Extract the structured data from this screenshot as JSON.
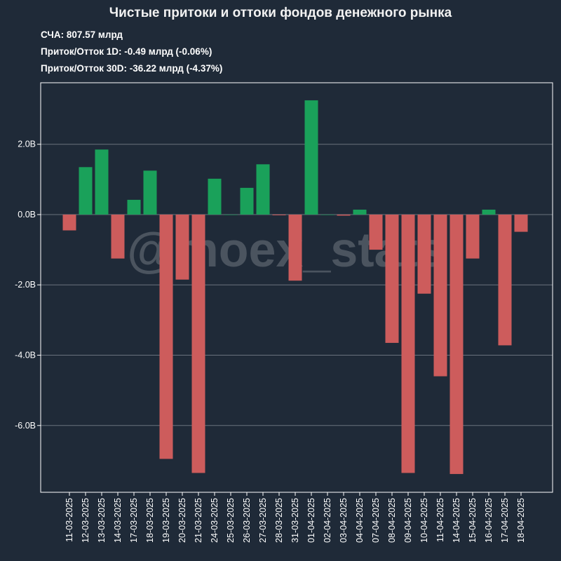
{
  "chart_data": {
    "type": "bar",
    "title": "Чистые притоки и оттоки фондов денежного рынка",
    "subtitle_lines": [
      "СЧА: 807.57 млрд",
      "Приток/Отток 1D: -0.49 млрд (-0.06%)",
      "Приток/Отток 30D: -36.22 млрд (-4.37%)"
    ],
    "watermark": "@moex_stats",
    "categories": [
      "11-03-2025",
      "12-03-2025",
      "13-03-2025",
      "14-03-2025",
      "17-03-2025",
      "18-03-2025",
      "19-03-2025",
      "20-03-2025",
      "21-03-2025",
      "24-03-2025",
      "25-03-2025",
      "26-03-2025",
      "27-03-2025",
      "28-03-2025",
      "31-03-2025",
      "01-04-2025",
      "02-04-2025",
      "03-04-2025",
      "04-04-2025",
      "07-04-2025",
      "08-04-2025",
      "09-04-2025",
      "10-04-2025",
      "11-04-2025",
      "14-04-2025",
      "15-04-2025",
      "16-04-2025",
      "17-04-2025",
      "18-04-2025"
    ],
    "values": [
      -0.45,
      1.35,
      1.85,
      -1.25,
      0.42,
      1.25,
      -6.95,
      -1.85,
      -7.35,
      1.02,
      0.0,
      0.76,
      1.43,
      -0.02,
      -1.88,
      3.25,
      0.0,
      -0.03,
      0.14,
      -1.0,
      -3.65,
      -7.35,
      -2.25,
      -4.6,
      -7.38,
      -1.25,
      0.14,
      -3.72,
      -0.49
    ],
    "yticks": [
      2.0,
      0.0,
      -2.0,
      -4.0,
      -6.0
    ],
    "ytick_labels": [
      "2.0B",
      "0.0B",
      "-2.0B",
      "-4.0B",
      "-6.0B"
    ],
    "ylim": [
      -7.9,
      3.75
    ],
    "grid": true,
    "colors": {
      "background": "#1f2a38",
      "positive": "#1aa15a",
      "negative": "#cd5c5c",
      "grid": "#6a727d",
      "axis": "#ffffff"
    }
  }
}
